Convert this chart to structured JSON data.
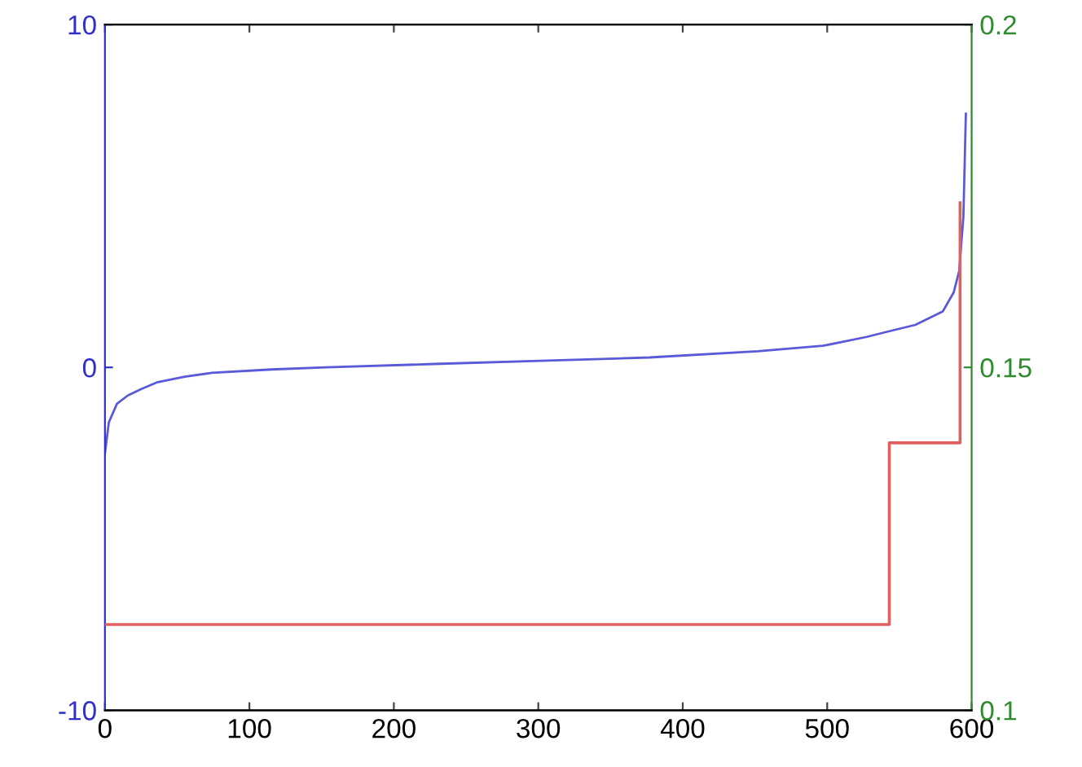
{
  "chart_data": {
    "type": "line",
    "xlim": [
      0,
      600
    ],
    "xticks": [
      0,
      100,
      200,
      300,
      400,
      500,
      600
    ],
    "ylim": [
      -10,
      10
    ],
    "yticks": [
      -10,
      0,
      10
    ],
    "y2lim": [
      0.1,
      0.2
    ],
    "y2ticks": [
      0.1,
      0.15,
      0.2
    ],
    "grid": false,
    "legend": false,
    "series": [
      {
        "color": "#5a5ad8",
        "x": [
          0,
          2.7,
          8.3,
          15.8,
          25.2,
          36.5,
          55.3,
          74,
          115.4,
          153,
          228,
          301.5,
          377,
          452,
          497,
          527.4,
          542.5,
          561,
          580,
          587.6,
          591.4,
          594.3,
          596
        ],
        "values": [
          -2.5,
          -1.6,
          -1.06,
          -0.82,
          -0.63,
          -0.43,
          -0.27,
          -0.16,
          -0.06,
          0,
          0.1,
          0.19,
          0.29,
          0.47,
          0.63,
          0.89,
          1.05,
          1.24,
          1.63,
          2.19,
          2.82,
          4.4,
          7.4
        ]
      },
      {
        "type": "step",
        "axis": "y2",
        "color": "#e06060",
        "x": [
          0,
          543,
          592
        ],
        "values": [
          0.1125,
          0.139,
          0.174
        ]
      }
    ]
  }
}
